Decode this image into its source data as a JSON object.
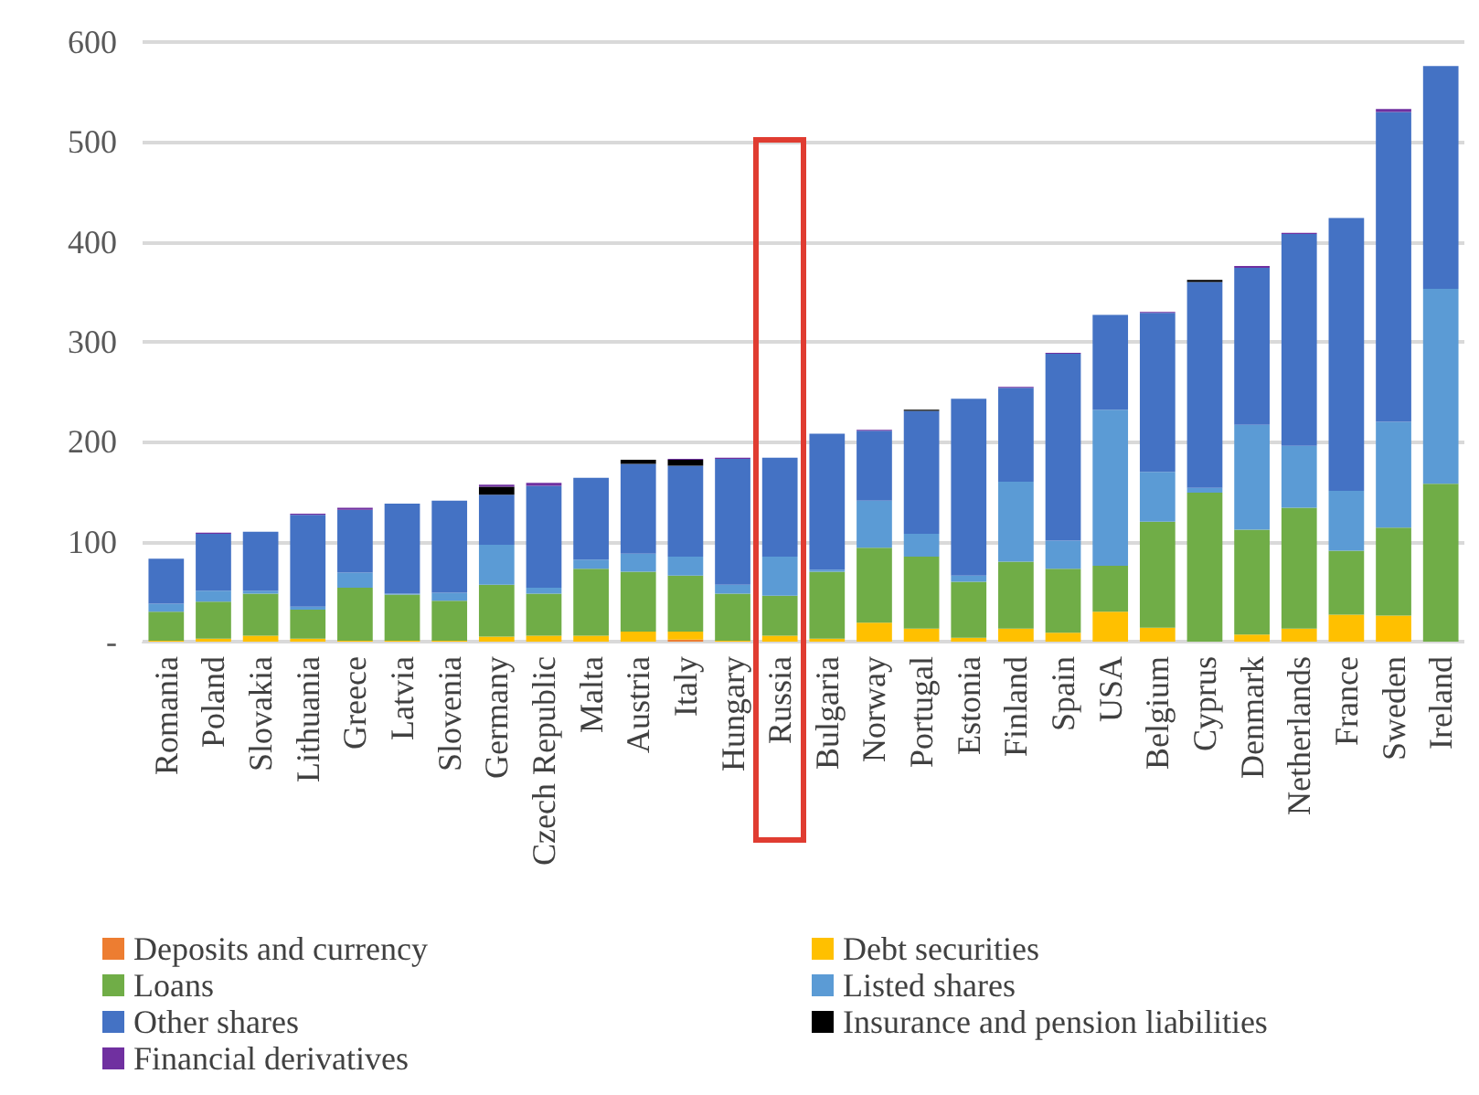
{
  "chart_data": {
    "type": "bar",
    "stacked": true,
    "categories": [
      "Romania",
      "Poland",
      "Slovakia",
      "Lithuania",
      "Greece",
      "Latvia",
      "Slovenia",
      "Germany",
      "Czech Republic",
      "Malta",
      "Austria",
      "Italy",
      "Hungary",
      "Russia",
      "Bulgaria",
      "Norway",
      "Portugal",
      "Estonia",
      "Finland",
      "Spain",
      "USA",
      "Belgium",
      "Cyprus",
      "Denmark",
      "Netherlands",
      "France",
      "Sweden",
      "Ireland"
    ],
    "series": [
      {
        "name": "Deposits and currency",
        "color": "#ed7d31",
        "values": [
          0,
          0,
          0,
          0,
          0,
          0,
          0,
          0,
          0,
          0,
          0,
          2,
          0,
          0,
          0,
          0,
          0,
          0,
          0,
          0,
          0,
          0,
          0,
          0,
          0,
          0,
          0,
          0
        ]
      },
      {
        "name": "Debt securities",
        "color": "#ffc000",
        "values": [
          1,
          3,
          6,
          3,
          1,
          1,
          1,
          5,
          6,
          6,
          10,
          8,
          1,
          6,
          3,
          19,
          13,
          4,
          13,
          9,
          30,
          14,
          0,
          7,
          13,
          27,
          26,
          0
        ]
      },
      {
        "name": "Loans",
        "color": "#70ad47",
        "values": [
          29,
          37,
          42,
          29,
          53,
          46,
          40,
          52,
          42,
          67,
          60,
          56,
          47,
          40,
          67,
          75,
          72,
          56,
          67,
          64,
          46,
          106,
          149,
          105,
          121,
          64,
          88,
          158
        ]
      },
      {
        "name": "Listed shares",
        "color": "#5b9bd5",
        "values": [
          8,
          11,
          3,
          3,
          15,
          1,
          8,
          40,
          6,
          9,
          18,
          19,
          9,
          39,
          2,
          47,
          23,
          6,
          80,
          28,
          156,
          50,
          5,
          105,
          62,
          60,
          106,
          195
        ]
      },
      {
        "name": "Other shares",
        "color": "#4472c4",
        "values": [
          45,
          57,
          59,
          92,
          63,
          90,
          92,
          50,
          102,
          82,
          90,
          91,
          126,
          99,
          136,
          70,
          123,
          177,
          94,
          187,
          95,
          159,
          206,
          157,
          212,
          273,
          310,
          223
        ]
      },
      {
        "name": "Insurance and pension liabilities",
        "color": "#000000",
        "values": [
          0,
          0,
          0,
          0,
          0,
          0,
          0,
          8,
          0,
          0,
          4,
          6,
          0,
          0,
          0,
          0,
          1,
          0,
          0,
          0,
          0,
          0,
          2,
          0,
          0,
          0,
          0,
          0
        ]
      },
      {
        "name": "Financial derivatives",
        "color": "#7030a0",
        "values": [
          0,
          1,
          0,
          1,
          2,
          0,
          0,
          2,
          3,
          0,
          0,
          1,
          1,
          0,
          0,
          1,
          0,
          0,
          1,
          1,
          0,
          1,
          0,
          2,
          1,
          0,
          3,
          0
        ]
      }
    ],
    "ylim": [
      0,
      600
    ],
    "yticks": [
      {
        "value": 0,
        "label": "-"
      },
      100,
      200,
      300,
      400,
      500,
      600
    ],
    "grid": "y",
    "legend": "bottom"
  }
}
